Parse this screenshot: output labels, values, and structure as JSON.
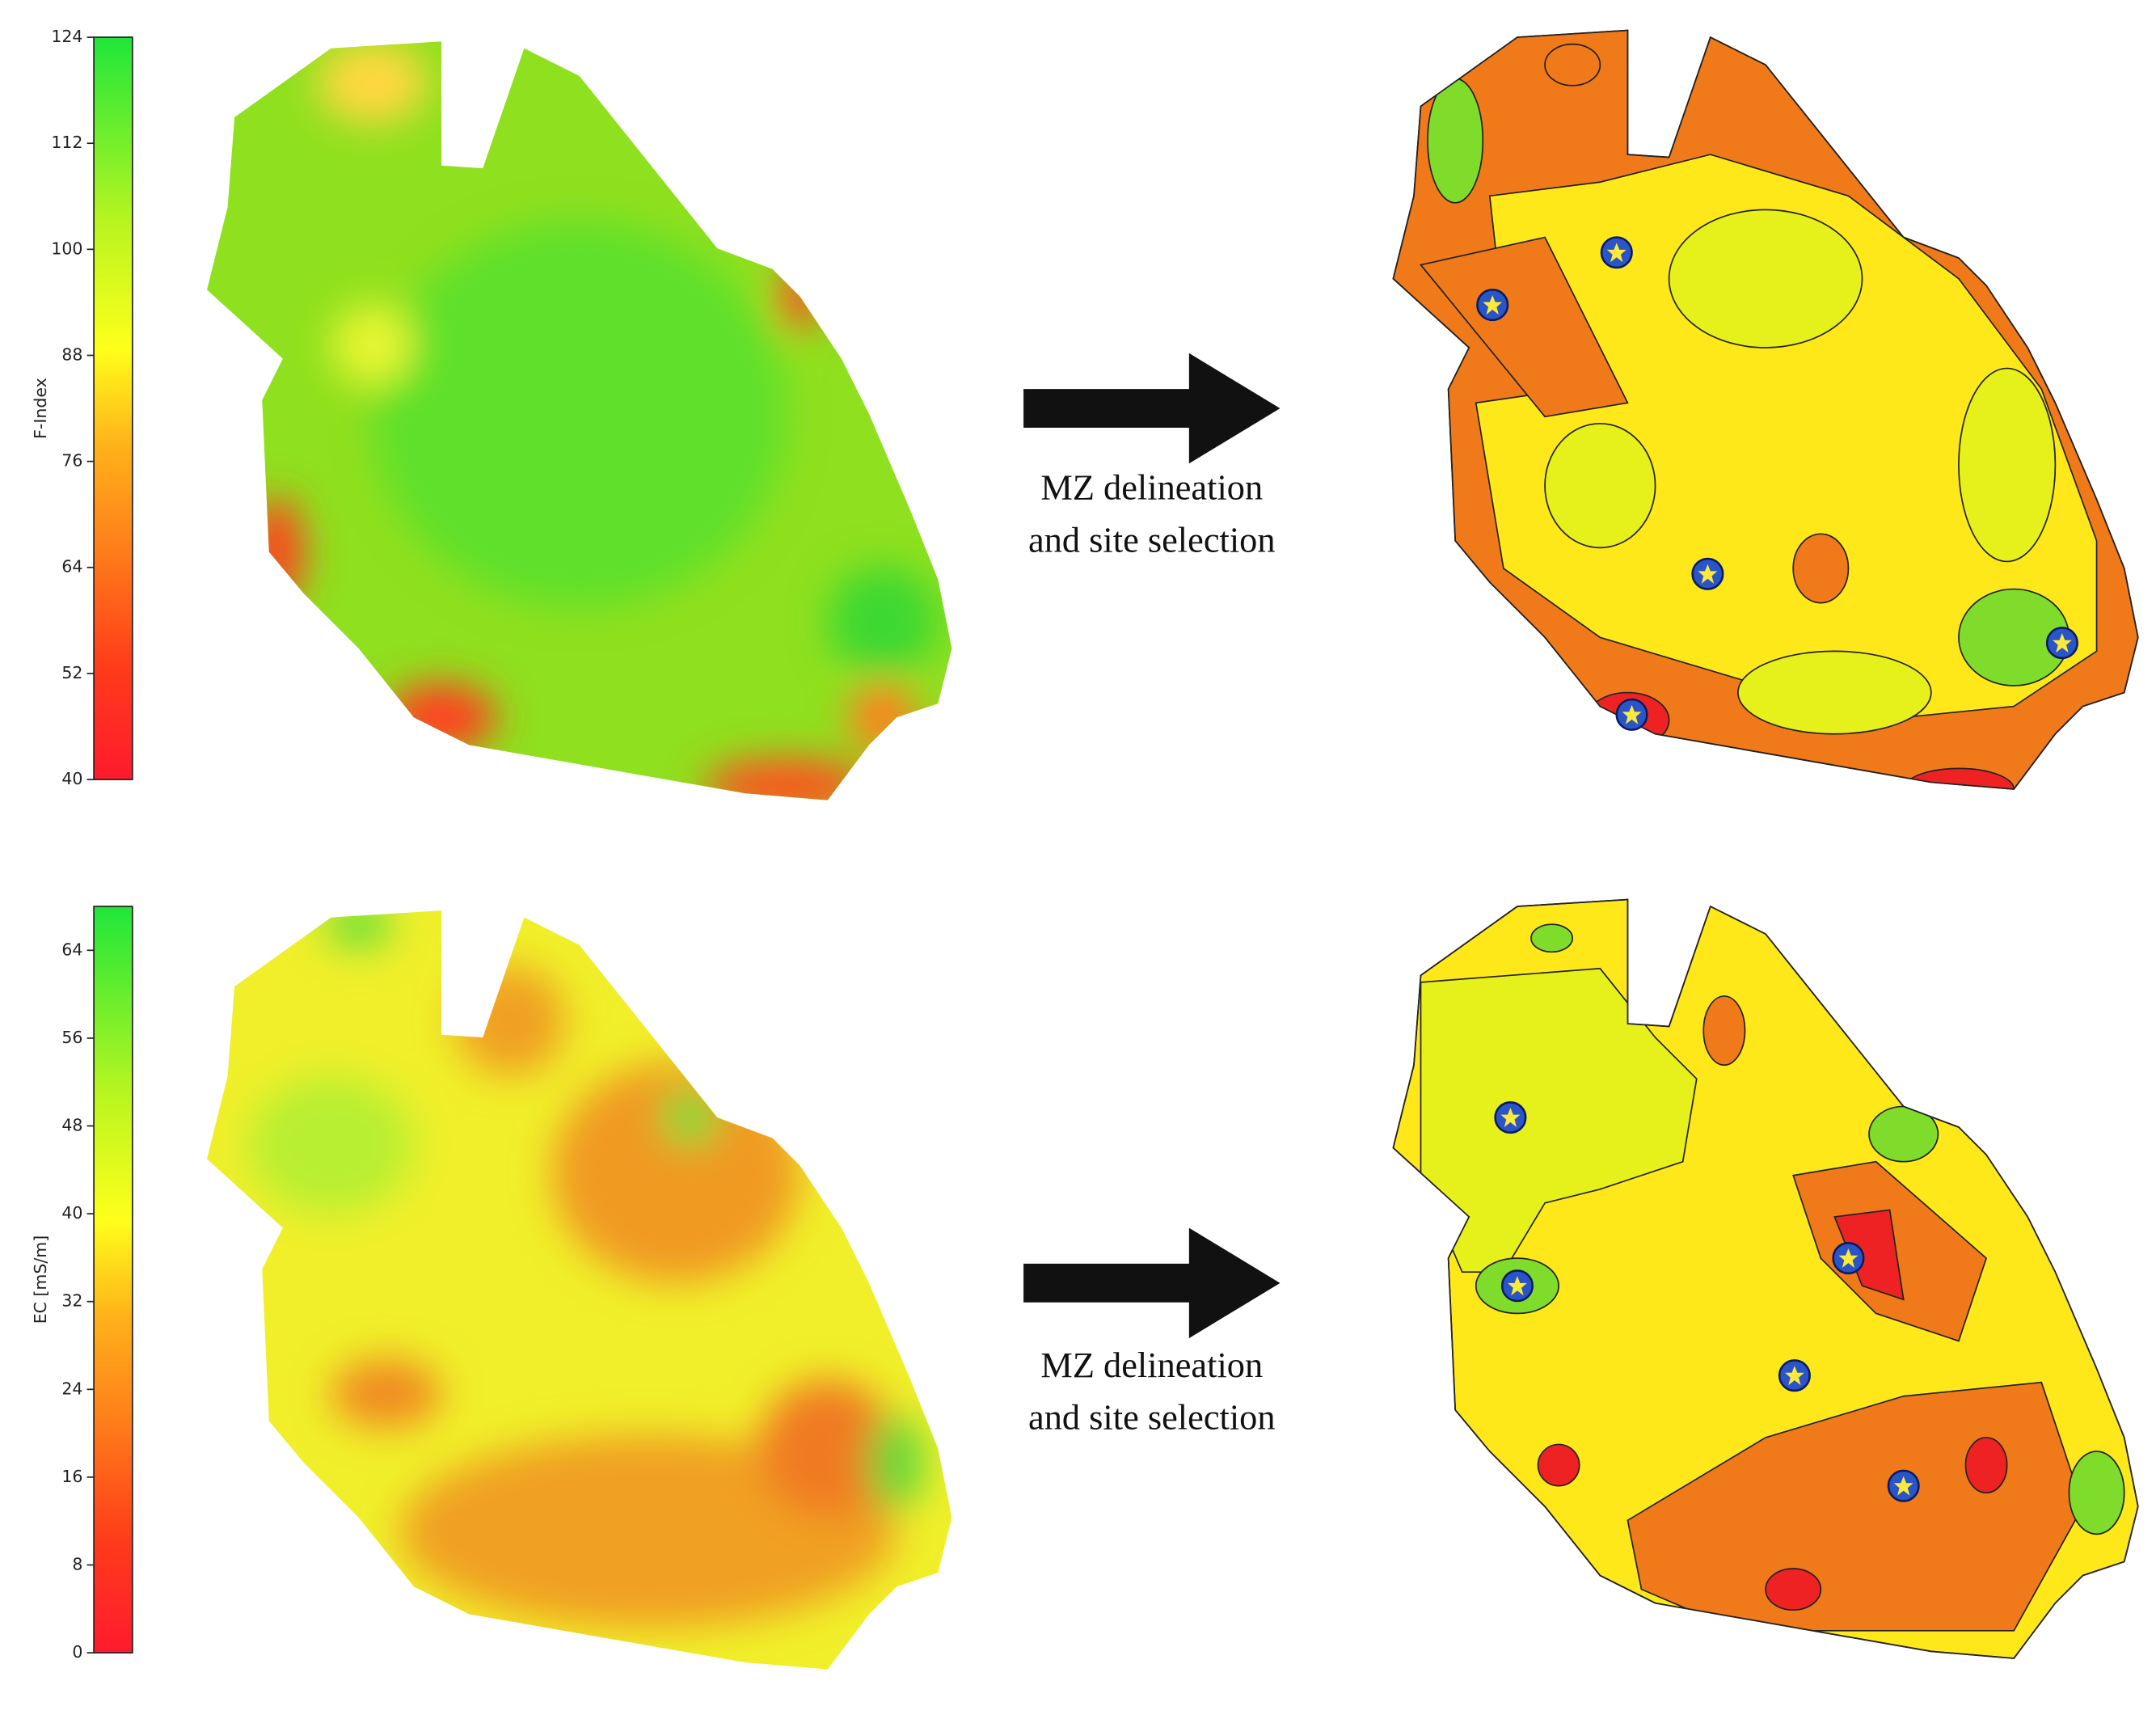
{
  "panels": [
    {
      "colorbar": {
        "label": "F-Index",
        "lim": [
          40,
          124
        ],
        "ticks": [
          40,
          52,
          64,
          76,
          88,
          100,
          112,
          124
        ]
      },
      "caption": [
        "MZ delineation",
        "and site selection"
      ]
    },
    {
      "colorbar": {
        "label": "EC [mS/m]",
        "lim": [
          0,
          68
        ],
        "ticks": [
          0,
          8,
          16,
          24,
          32,
          40,
          48,
          56,
          64
        ]
      },
      "caption": [
        "MZ delineation",
        "and site selection"
      ]
    }
  ]
}
